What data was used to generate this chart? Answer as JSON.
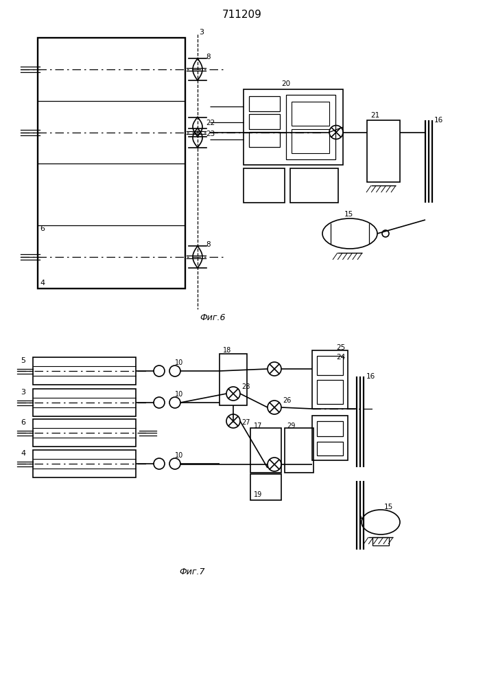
{
  "title": "711209",
  "fig6_label": "Фиг.6",
  "fig7_label": "Фиг.7",
  "bg_color": "#ffffff"
}
